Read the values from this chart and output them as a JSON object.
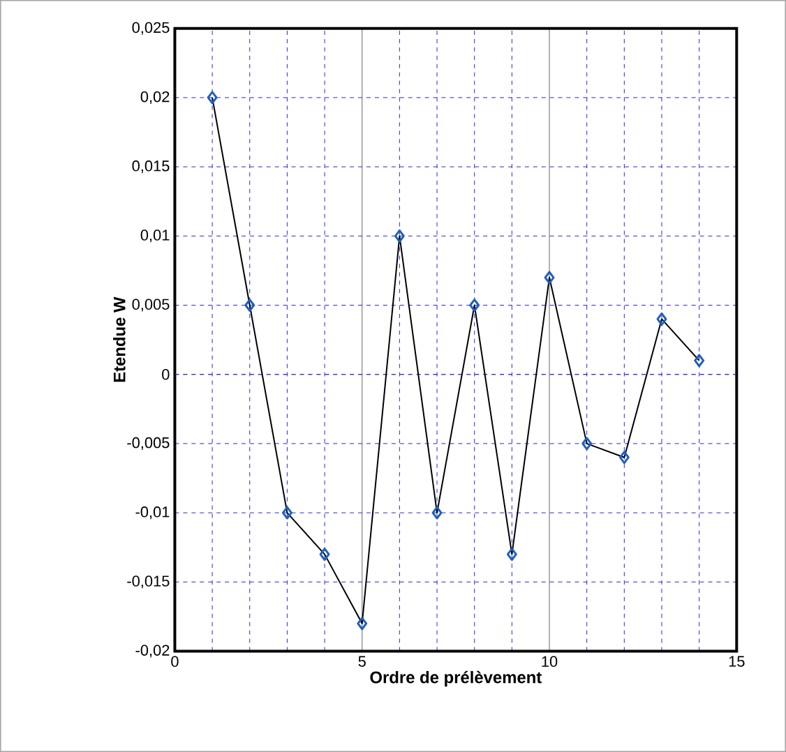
{
  "chart_data": {
    "type": "line",
    "xlabel": "Ordre de prélèvement",
    "ylabel": "Etendue W",
    "x": [
      1,
      2,
      3,
      4,
      5,
      6,
      7,
      8,
      9,
      10,
      11,
      12,
      13,
      14
    ],
    "series": [
      {
        "color": "#1f5fbf",
        "values": [
          0.02,
          0.005,
          -0.01,
          -0.013,
          -0.018,
          0.01,
          -0.01,
          0.005,
          -0.013,
          0.007,
          -0.005,
          -0.006,
          0.004,
          0.001
        ]
      }
    ],
    "xlim": [
      0,
      15
    ],
    "xticks": [
      0,
      5,
      10,
      15
    ],
    "ylim": [
      -0.02,
      0.025
    ],
    "yticks": [
      {
        "value": -0.02,
        "label": "-0,02"
      },
      {
        "value": -0.015,
        "label": "-0,015"
      },
      {
        "value": -0.01,
        "label": "-0,01"
      },
      {
        "value": -0.005,
        "label": "-0,005"
      },
      {
        "value": 0,
        "label": "0"
      },
      {
        "value": 0.005,
        "label": "0,005"
      },
      {
        "value": 0.01,
        "label": "0,01"
      },
      {
        "value": 0.015,
        "label": "0,015"
      },
      {
        "value": 0.02,
        "label": "0,02"
      },
      {
        "value": 0.025,
        "label": "0,025"
      }
    ],
    "grid": true,
    "marker": "diamond",
    "line_style": "solid"
  }
}
